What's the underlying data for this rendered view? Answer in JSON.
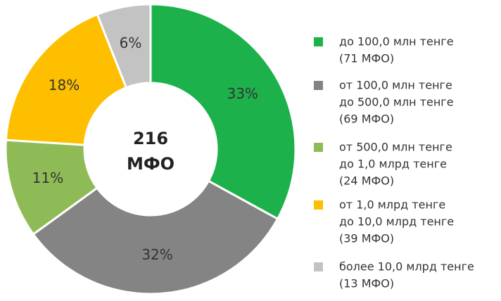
{
  "chart_data": {
    "type": "pie",
    "center_label": [
      "216",
      "МФО"
    ],
    "categories": [
      [
        "до 100,0 млн тенге",
        "(71 МФО)"
      ],
      [
        "от 100,0 млн тенге",
        "до 500,0 млн тенге",
        "(69 МФО)"
      ],
      [
        "от 500,0 млн тенге",
        "до 1,0 млрд тенге",
        "(24 МФО)"
      ],
      [
        "от 1,0 млрд тенге",
        "до 10,0 млрд тенге",
        "(39 МФО)"
      ],
      [
        "более 10,0 млрд тенге",
        "(13 МФО)"
      ]
    ],
    "values": [
      33,
      32,
      11,
      18,
      6
    ],
    "value_labels": [
      "33%",
      "32%",
      "11%",
      "18%",
      "6%"
    ],
    "colors": [
      "#1db14b",
      "#848484",
      "#8fbb57",
      "#fdbf00",
      "#c3c3c3"
    ]
  }
}
